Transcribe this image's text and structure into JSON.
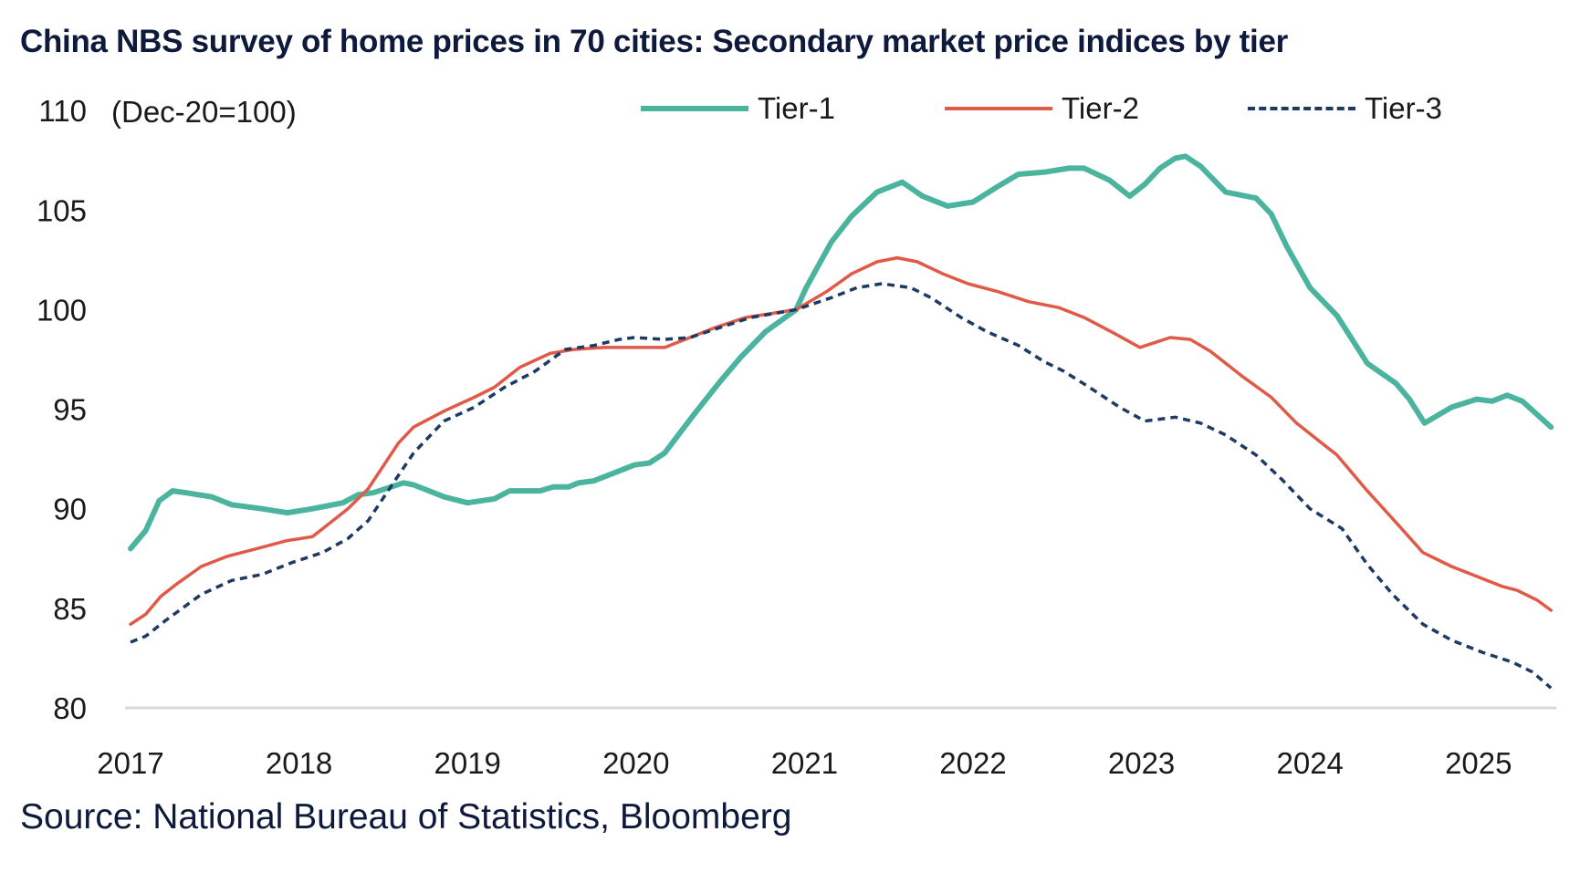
{
  "chart_data": {
    "type": "line",
    "title": "China NBS survey of home prices in 70 cities: Secondary market price indices by tier",
    "ylabel": "(Dec-20=100)",
    "xlabel": "",
    "source": "Source: National Bureau of Statistics, Bloomberg",
    "ylim": [
      80,
      110
    ],
    "yticks": [
      "80",
      "85",
      "90",
      "95",
      "100",
      "105",
      "110"
    ],
    "xlim": [
      2017,
      2025.6
    ],
    "xticks": [
      "2017",
      "2018",
      "2019",
      "2020",
      "2021",
      "2022",
      "2023",
      "2024",
      "2025"
    ],
    "legend_position": "top-right",
    "grid": false,
    "series": [
      {
        "name": "Tier-1",
        "color": "#4bb49f",
        "style": "solid",
        "x": [
          2017.0,
          2017.09,
          2017.17,
          2017.25,
          2017.33,
          2017.48,
          2017.6,
          2017.78,
          2017.93,
          2018.08,
          2018.26,
          2018.35,
          2018.44,
          2018.62,
          2018.68,
          2018.86,
          2019.0,
          2019.16,
          2019.25,
          2019.43,
          2019.51,
          2019.6,
          2019.66,
          2019.75,
          2019.87,
          2019.99,
          2020.08,
          2020.17,
          2020.26,
          2020.35,
          2020.5,
          2020.62,
          2020.77,
          2020.95,
          2021.01,
          2021.16,
          2021.28,
          2021.43,
          2021.58,
          2021.7,
          2021.85,
          2022.0,
          2022.15,
          2022.27,
          2022.42,
          2022.57,
          2022.66,
          2022.81,
          2022.93,
          2023.02,
          2023.11,
          2023.2,
          2023.26,
          2023.35,
          2023.5,
          2023.68,
          2023.77,
          2023.86,
          2024.0,
          2024.16,
          2024.34,
          2024.51,
          2024.59,
          2024.68,
          2024.84,
          2024.99,
          2025.08,
          2025.17,
          2025.26,
          2025.43
        ],
        "y": [
          88.0,
          88.9,
          90.4,
          90.9,
          90.8,
          90.6,
          90.2,
          90.0,
          89.8,
          90.0,
          90.3,
          90.7,
          90.8,
          91.3,
          91.2,
          90.6,
          90.3,
          90.5,
          90.9,
          90.9,
          91.1,
          91.1,
          91.3,
          91.4,
          91.8,
          92.2,
          92.3,
          92.8,
          93.8,
          94.8,
          96.4,
          97.6,
          98.9,
          100.0,
          101.1,
          103.4,
          104.7,
          105.9,
          106.4,
          105.7,
          105.2,
          105.4,
          106.2,
          106.8,
          106.9,
          107.1,
          107.1,
          106.5,
          105.7,
          106.3,
          107.1,
          107.6,
          107.7,
          107.2,
          105.9,
          105.6,
          104.8,
          103.2,
          101.1,
          99.7,
          97.3,
          96.3,
          95.5,
          94.3,
          95.1,
          95.5,
          95.4,
          95.7,
          95.4,
          94.1
        ]
      },
      {
        "name": "Tier-2",
        "color": "#e05a47",
        "style": "solid",
        "x": [
          2017.0,
          2017.09,
          2017.18,
          2017.27,
          2017.42,
          2017.57,
          2017.75,
          2017.93,
          2018.08,
          2018.17,
          2018.29,
          2018.41,
          2018.59,
          2018.68,
          2018.86,
          2019.04,
          2019.16,
          2019.31,
          2019.49,
          2019.63,
          2019.81,
          2019.99,
          2020.17,
          2020.32,
          2020.47,
          2020.65,
          2020.95,
          2021.13,
          2021.28,
          2021.43,
          2021.55,
          2021.67,
          2021.82,
          2021.97,
          2022.15,
          2022.33,
          2022.51,
          2022.66,
          2022.84,
          2022.99,
          2023.17,
          2023.29,
          2023.41,
          2023.59,
          2023.77,
          2023.92,
          2024.07,
          2024.16,
          2024.34,
          2024.49,
          2024.67,
          2024.84,
          2024.99,
          2025.14,
          2025.23,
          2025.35,
          2025.43
        ],
        "y": [
          84.2,
          84.7,
          85.6,
          86.2,
          87.1,
          87.6,
          88.0,
          88.4,
          88.6,
          89.2,
          90.0,
          91.0,
          93.3,
          94.1,
          94.9,
          95.6,
          96.1,
          97.1,
          97.8,
          98.0,
          98.1,
          98.1,
          98.1,
          98.6,
          99.1,
          99.6,
          100.0,
          100.9,
          101.8,
          102.4,
          102.6,
          102.4,
          101.8,
          101.3,
          100.9,
          100.4,
          100.1,
          99.6,
          98.8,
          98.1,
          98.6,
          98.5,
          97.9,
          96.7,
          95.6,
          94.3,
          93.3,
          92.7,
          90.9,
          89.5,
          87.8,
          87.1,
          86.6,
          86.1,
          85.9,
          85.4,
          84.9
        ]
      },
      {
        "name": "Tier-3",
        "color": "#1c3a64",
        "style": "dashed",
        "x": [
          2017.0,
          2017.09,
          2017.21,
          2017.42,
          2017.6,
          2017.78,
          2017.96,
          2018.14,
          2018.29,
          2018.41,
          2018.56,
          2018.68,
          2018.86,
          2019.04,
          2019.22,
          2019.4,
          2019.58,
          2019.75,
          2019.9,
          2019.99,
          2020.17,
          2020.32,
          2020.5,
          2020.68,
          2020.95,
          2021.16,
          2021.31,
          2021.46,
          2021.63,
          2021.75,
          2021.93,
          2022.08,
          2022.27,
          2022.42,
          2022.54,
          2022.69,
          2022.87,
          2023.02,
          2023.2,
          2023.35,
          2023.5,
          2023.68,
          2023.83,
          2024.0,
          2024.19,
          2024.34,
          2024.49,
          2024.67,
          2024.84,
          2025.02,
          2025.2,
          2025.32,
          2025.43
        ],
        "y": [
          83.3,
          83.6,
          84.4,
          85.7,
          86.4,
          86.7,
          87.3,
          87.8,
          88.5,
          89.4,
          91.3,
          92.8,
          94.4,
          95.1,
          96.1,
          96.9,
          98.0,
          98.2,
          98.5,
          98.6,
          98.5,
          98.6,
          99.1,
          99.6,
          100.0,
          100.6,
          101.1,
          101.3,
          101.1,
          100.6,
          99.6,
          98.9,
          98.2,
          97.4,
          96.9,
          96.1,
          95.1,
          94.4,
          94.6,
          94.3,
          93.7,
          92.7,
          91.5,
          90.0,
          89.0,
          87.2,
          85.7,
          84.2,
          83.4,
          82.8,
          82.3,
          81.8,
          81.0
        ]
      }
    ]
  }
}
